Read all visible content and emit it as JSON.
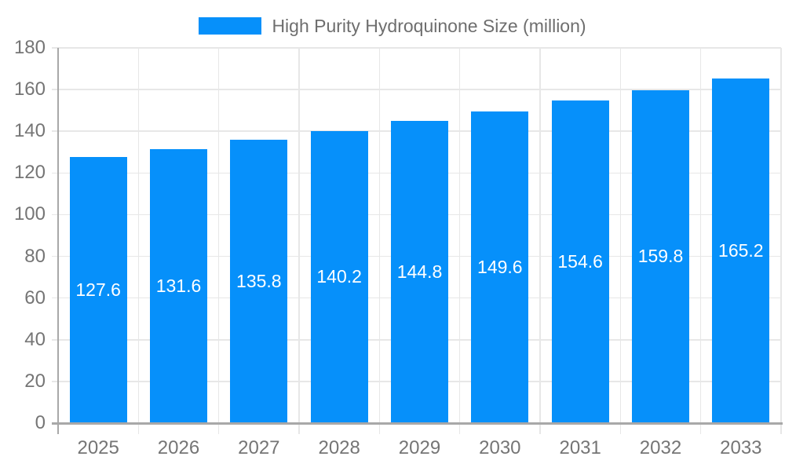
{
  "legend": {
    "label": "High Purity Hydroquinone Size (million)"
  },
  "chart_data": {
    "type": "bar",
    "title": "",
    "series_name": "High Purity Hydroquinone Size (million)",
    "categories": [
      "2025",
      "2026",
      "2027",
      "2028",
      "2029",
      "2030",
      "2031",
      "2032",
      "2033"
    ],
    "values": [
      127.6,
      131.6,
      135.8,
      140.2,
      144.8,
      149.6,
      154.6,
      159.8,
      165.2
    ],
    "value_labels": [
      "127.6",
      "131.6",
      "135.8",
      "140.2",
      "144.8",
      "149.6",
      "154.6",
      "159.8",
      "165.2"
    ],
    "xlabel": "",
    "ylabel": "",
    "ylim": [
      0,
      180
    ],
    "ytick_step": 20,
    "ytick_labels": [
      "0",
      "20",
      "40",
      "60",
      "80",
      "100",
      "120",
      "140",
      "160",
      "180"
    ],
    "grid": true,
    "legend_position": "top-center",
    "value_label_position": "inside-center",
    "colors": {
      "bar": "#0690FA",
      "grid": "#e7e7e7",
      "axis_line": "#a8a8a8",
      "axis_text": "#757575",
      "legend_text": "#6e6e6e",
      "value_text": "#ffffff",
      "background": "#ffffff"
    }
  }
}
